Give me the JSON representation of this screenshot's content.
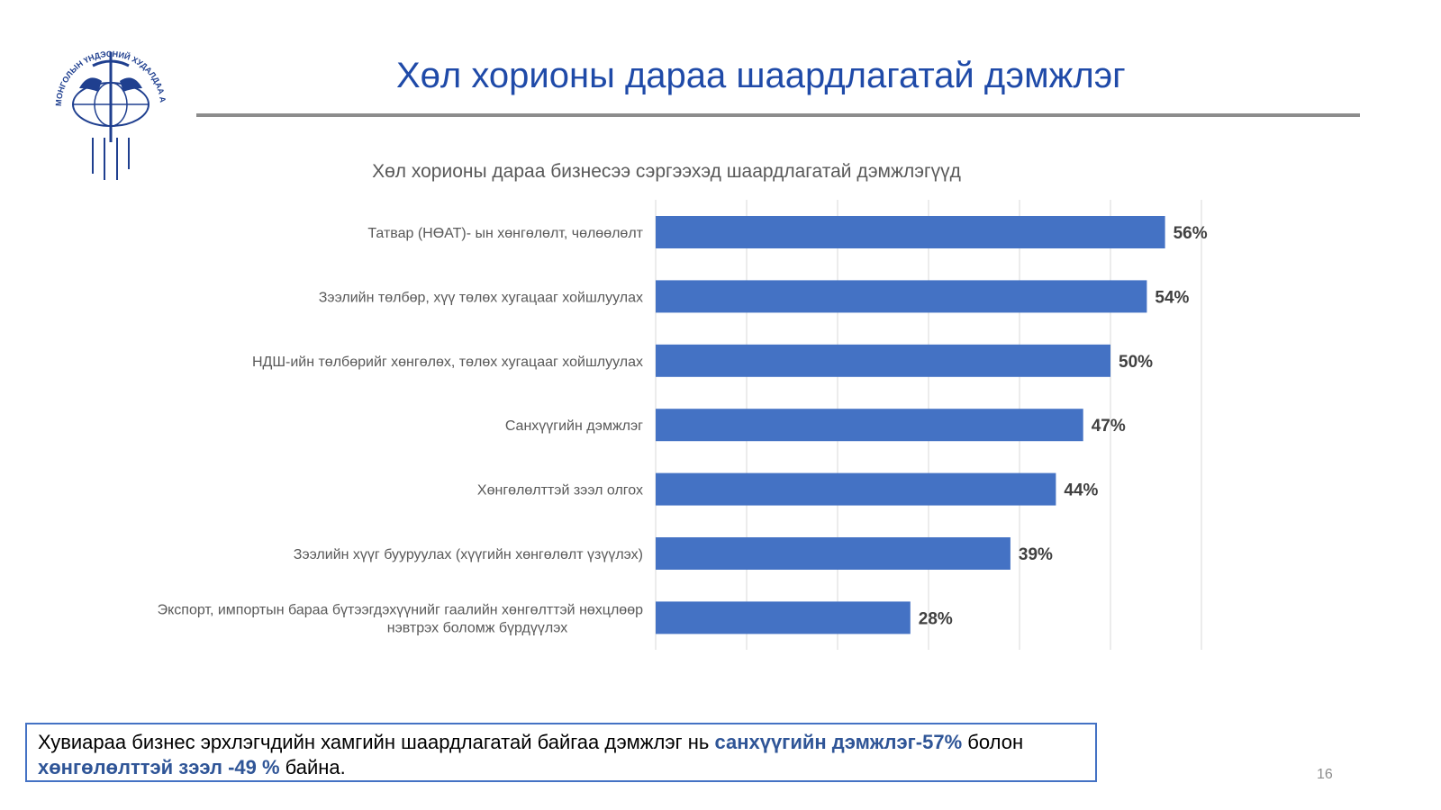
{
  "logo": {
    "text": "МОНГОЛЫН ҮНДЭСНИЙ ХУДАЛДАА АЖ ҮЙЛДВЭРИЙН ТАНХИМ"
  },
  "header": {
    "title": "Хөл хорионы дараа шаардлагатай дэмжлэг"
  },
  "chart_data": {
    "type": "bar",
    "orientation": "horizontal",
    "title": "Хөл хорионы дараа бизнесээ сэргээхэд шаардлагатай дэмжлэгүүд",
    "categories": [
      "Татвар (НӨАТ)- ын хөнгөлөлт, чөлөөлөлт",
      "Зээлийн төлбөр, хүү төлөх хугацааг хойшлуулах",
      "НДШ-ийн төлбөрийг хөнгөлөх, төлөх хугацааг хойшлуулах",
      "Санхүүгийн дэмжлэг",
      "Хөнгөлөлттэй зээл олгох",
      "Зээлийн хүүг бууруулах (хүүгийн хөнгөлөлт үзүүлэх)",
      "Экспорт, импортын бараа бүтээгдэхүүнийг гаалийн хөнгөлттэй нөхцлөөр|нэвтрэх боломж бүрдүүлэх"
    ],
    "values": [
      56,
      54,
      50,
      47,
      44,
      39,
      28
    ],
    "data_labels": [
      "56%",
      "54%",
      "50%",
      "47%",
      "44%",
      "39%",
      "28%"
    ],
    "xlim": [
      0,
      60
    ],
    "xgrid_step": 10,
    "grid": true,
    "bar_color": "#4472c4"
  },
  "note": {
    "part1": "Хувиараа бизнес эрхлэгчдийн хамгийн шаардлагатай байгаа дэмжлэг нь ",
    "highlight1": "санхүүгийн дэмжлэг-57%",
    "part2": " болон ",
    "highlight2": "хөнгөлөлттэй зээл -49 %",
    "part3": " байна."
  },
  "page_number": "16"
}
